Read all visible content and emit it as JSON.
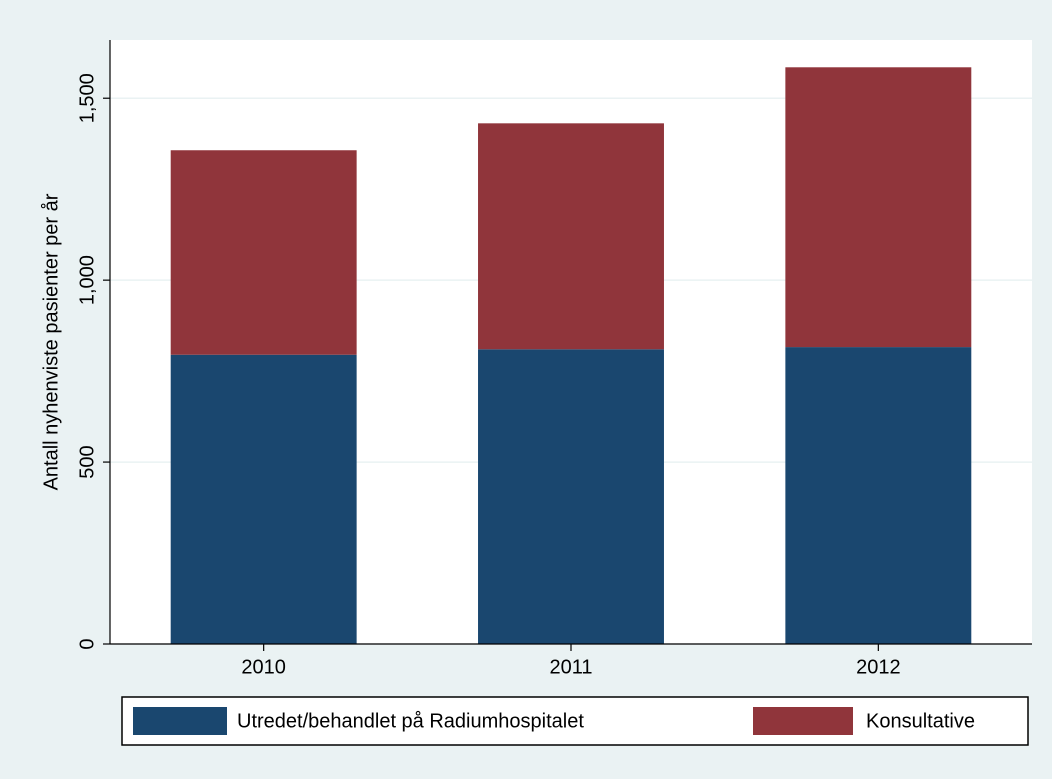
{
  "chart_data": {
    "type": "stacked-bar",
    "y_label": "Antall nyhenviste pasienter per år",
    "categories": [
      "2010",
      "2011",
      "2012"
    ],
    "series": [
      {
        "name": "Utredet/behandlet på Radiumhospitalet",
        "color": "#1a476f",
        "values": [
          795,
          810,
          816
        ]
      },
      {
        "name": "Konsultative",
        "color": "#90353b",
        "values": [
          562,
          621,
          769
        ]
      }
    ],
    "ylim": [
      0,
      1660
    ],
    "yticks": [
      0,
      500,
      {
        "value": 1000,
        "label": "1,000"
      },
      {
        "value": 1500,
        "label": "1,500"
      }
    ],
    "grid": true,
    "legend": "bottom"
  }
}
